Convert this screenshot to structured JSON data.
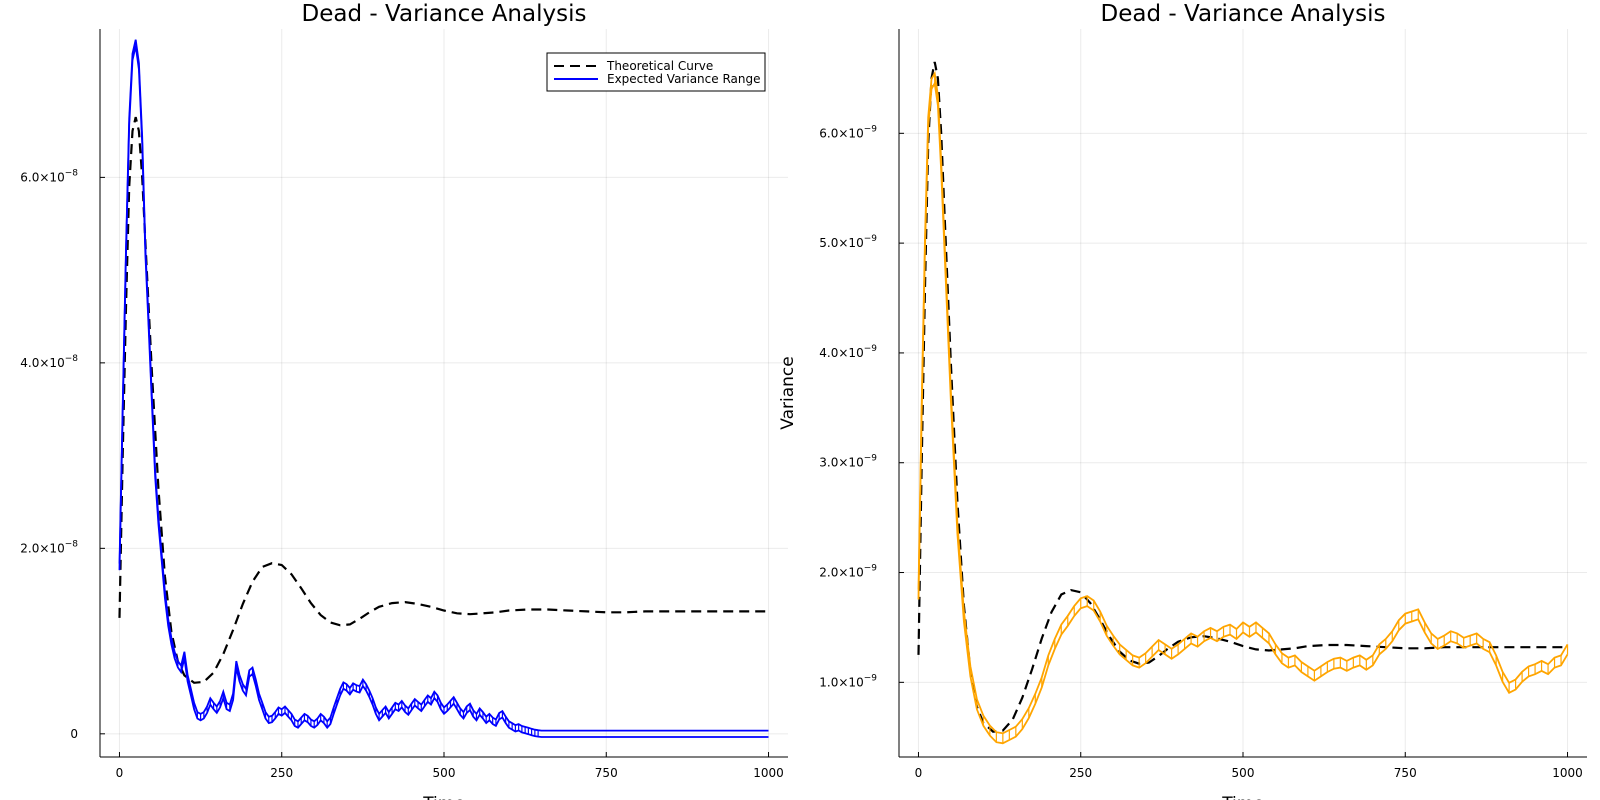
{
  "chart_data": [
    {
      "type": "line",
      "title": "Dead - Variance Analysis",
      "xlabel": "Time",
      "ylabel": "",
      "xlim": [
        -30,
        1030
      ],
      "ylim": [
        -2.5e-09,
        7.6e-08
      ],
      "grid": true,
      "legend_position": "top-right",
      "x_ticks": [
        0,
        250,
        500,
        750,
        1000
      ],
      "x_tick_labels": [
        "0",
        "250",
        "500",
        "750",
        "1000"
      ],
      "y_ticks": [
        0,
        2e-08,
        4e-08,
        6e-08
      ],
      "y_tick_labels": [
        {
          "mantissa": "0",
          "exp": ""
        },
        {
          "mantissa": "2.0×10",
          "exp": "−8"
        },
        {
          "mantissa": "4.0×10",
          "exp": "−8"
        },
        {
          "mantissa": "6.0×10",
          "exp": "−8"
        }
      ],
      "series": [
        {
          "name": "Theoretical Curve",
          "style": "dashed",
          "color": "#000000",
          "x": [
            0,
            5,
            10,
            15,
            20,
            25,
            30,
            35,
            40,
            50,
            60,
            70,
            80,
            90,
            100,
            115,
            130,
            145,
            160,
            175,
            190,
            205,
            220,
            235,
            250,
            265,
            280,
            295,
            310,
            325,
            340,
            355,
            370,
            385,
            400,
            420,
            440,
            460,
            480,
            500,
            520,
            540,
            560,
            580,
            600,
            630,
            660,
            690,
            720,
            750,
            780,
            810,
            840,
            870,
            900,
            930,
            960,
            1000
          ],
          "y": [
            1.25e-08,
            3e-08,
            4.6e-08,
            5.9e-08,
            6.5e-08,
            6.65e-08,
            6.5e-08,
            6e-08,
            5.3e-08,
            3.9e-08,
            2.65e-08,
            1.7e-08,
            1.1e-08,
            7.8e-09,
            6.3e-09,
            5.5e-09,
            5.6e-09,
            6.6e-09,
            8.6e-09,
            1.12e-08,
            1.4e-08,
            1.64e-08,
            1.8e-08,
            1.84e-08,
            1.82e-08,
            1.72e-08,
            1.57e-08,
            1.41e-08,
            1.28e-08,
            1.2e-08,
            1.17e-08,
            1.18e-08,
            1.24e-08,
            1.31e-08,
            1.37e-08,
            1.41e-08,
            1.42e-08,
            1.4e-08,
            1.37e-08,
            1.33e-08,
            1.3e-08,
            1.29e-08,
            1.3e-08,
            1.31e-08,
            1.33e-08,
            1.34e-08,
            1.34e-08,
            1.33e-08,
            1.32e-08,
            1.31e-08,
            1.31e-08,
            1.32e-08,
            1.32e-08,
            1.32e-08,
            1.32e-08,
            1.32e-08,
            1.32e-08,
            1.32e-08
          ]
        },
        {
          "name": "Expected Variance Range",
          "style": "band",
          "color": "#0000ff",
          "x": [
            0,
            5,
            10,
            15,
            20,
            25,
            30,
            35,
            40,
            45,
            50,
            55,
            60,
            65,
            70,
            75,
            80,
            85,
            90,
            95,
            100,
            105,
            110,
            115,
            120,
            125,
            130,
            135,
            140,
            145,
            150,
            155,
            160,
            165,
            170,
            175,
            180,
            185,
            190,
            195,
            200,
            205,
            210,
            215,
            220,
            225,
            230,
            235,
            240,
            245,
            250,
            255,
            260,
            265,
            270,
            275,
            280,
            285,
            290,
            295,
            300,
            305,
            310,
            315,
            320,
            325,
            330,
            335,
            340,
            345,
            350,
            355,
            360,
            365,
            370,
            375,
            380,
            385,
            390,
            395,
            400,
            405,
            410,
            415,
            420,
            425,
            430,
            435,
            440,
            445,
            450,
            455,
            460,
            465,
            470,
            475,
            480,
            485,
            490,
            495,
            500,
            505,
            510,
            515,
            520,
            525,
            530,
            535,
            540,
            545,
            550,
            555,
            560,
            565,
            570,
            575,
            580,
            585,
            590,
            595,
            600,
            605,
            610,
            615,
            620,
            625,
            630,
            635,
            640,
            645,
            650,
            700,
            750,
            800,
            850,
            900,
            950,
            1000
          ],
          "y": [
            1.8e-08,
            3.5e-08,
            5.2e-08,
            6.6e-08,
            7.3e-08,
            7.45e-08,
            7.2e-08,
            6.4e-08,
            5.2e-08,
            4.4e-08,
            3.6e-08,
            2.8e-08,
            2.3e-08,
            1.9e-08,
            1.5e-08,
            1.2e-08,
            1e-08,
            8.5e-09,
            7.5e-09,
            7e-09,
            8.5e-09,
            6e-09,
            4.5e-09,
            3e-09,
            2e-09,
            1.8e-09,
            2e-09,
            2.6e-09,
            3.5e-09,
            3e-09,
            2.6e-09,
            3.2e-09,
            4.2e-09,
            3e-09,
            2.8e-09,
            4e-09,
            7.5e-09,
            6e-09,
            5e-09,
            4.5e-09,
            6.5e-09,
            6.8e-09,
            5.5e-09,
            4e-09,
            3e-09,
            2e-09,
            1.5e-09,
            1.6e-09,
            2e-09,
            2.5e-09,
            2.3e-09,
            2.6e-09,
            2.2e-09,
            1.8e-09,
            1.2e-09,
            1e-09,
            1.4e-09,
            1.8e-09,
            1.6e-09,
            1.2e-09,
            1e-09,
            1.3e-09,
            1.8e-09,
            1.5e-09,
            1e-09,
            1.4e-09,
            2.5e-09,
            3.5e-09,
            4.5e-09,
            5.2e-09,
            5e-09,
            4.6e-09,
            5.1e-09,
            4.9e-09,
            4.8e-09,
            5.5e-09,
            5e-09,
            4.3e-09,
            3.5e-09,
            2.5e-09,
            1.8e-09,
            2.2e-09,
            2.6e-09,
            2e-09,
            2.5e-09,
            3e-09,
            2.8e-09,
            3.2e-09,
            2.7e-09,
            2.4e-09,
            2.9e-09,
            3.4e-09,
            3.1e-09,
            2.8e-09,
            3.3e-09,
            3.8e-09,
            3.5e-09,
            4.2e-09,
            3.8e-09,
            3e-09,
            2.5e-09,
            2.8e-09,
            3.2e-09,
            3.6e-09,
            3e-09,
            2.4e-09,
            2e-09,
            2.6e-09,
            2.9e-09,
            2.2e-09,
            1.8e-09,
            2.4e-09,
            2e-09,
            1.5e-09,
            1.8e-09,
            1.4e-09,
            1.2e-09,
            1.9e-09,
            2.1e-09,
            1.5e-09,
            1e-09,
            8e-10,
            6e-10,
            7e-10,
            5e-10,
            4e-10,
            3e-10,
            2e-10,
            1e-10,
            5e-11,
            0,
            0,
            0,
            0,
            0,
            0,
            0,
            0
          ]
        }
      ]
    },
    {
      "type": "line",
      "title": "Dead - Variance Analysis",
      "xlabel": "Time",
      "ylabel": "Variance",
      "xlim": [
        -30,
        1030
      ],
      "ylim": [
        3.2e-10,
        6.95e-09
      ],
      "grid": true,
      "legend_position": "none",
      "x_ticks": [
        0,
        250,
        500,
        750,
        1000
      ],
      "x_tick_labels": [
        "0",
        "250",
        "500",
        "750",
        "1000"
      ],
      "y_ticks": [
        1e-09,
        2e-09,
        3e-09,
        4e-09,
        5e-09,
        6e-09
      ],
      "y_tick_labels": [
        {
          "mantissa": "1.0×10",
          "exp": "−9"
        },
        {
          "mantissa": "2.0×10",
          "exp": "−9"
        },
        {
          "mantissa": "3.0×10",
          "exp": "−9"
        },
        {
          "mantissa": "4.0×10",
          "exp": "−9"
        },
        {
          "mantissa": "5.0×10",
          "exp": "−9"
        },
        {
          "mantissa": "6.0×10",
          "exp": "−9"
        }
      ],
      "series": [
        {
          "style": "dashed",
          "color": "#000000",
          "x": [
            0,
            5,
            10,
            15,
            20,
            25,
            30,
            35,
            40,
            50,
            60,
            70,
            80,
            90,
            100,
            115,
            130,
            145,
            160,
            175,
            190,
            205,
            220,
            235,
            250,
            265,
            280,
            295,
            310,
            325,
            340,
            355,
            370,
            385,
            400,
            420,
            440,
            460,
            480,
            500,
            520,
            540,
            560,
            580,
            600,
            630,
            660,
            690,
            720,
            750,
            780,
            810,
            840,
            870,
            900,
            930,
            960,
            1000
          ],
          "y": [
            1.25e-09,
            3e-09,
            4.6e-09,
            5.9e-09,
            6.5e-09,
            6.65e-09,
            6.5e-09,
            6e-09,
            5.3e-09,
            3.9e-09,
            2.65e-09,
            1.7e-09,
            1.1e-09,
            7.8e-10,
            6.3e-10,
            5.5e-10,
            5.6e-10,
            6.6e-10,
            8.6e-10,
            1.12e-09,
            1.4e-09,
            1.64e-09,
            1.8e-09,
            1.84e-09,
            1.82e-09,
            1.72e-09,
            1.57e-09,
            1.41e-09,
            1.28e-09,
            1.2e-09,
            1.17e-09,
            1.18e-09,
            1.24e-09,
            1.31e-09,
            1.37e-09,
            1.41e-09,
            1.42e-09,
            1.4e-09,
            1.37e-09,
            1.33e-09,
            1.3e-09,
            1.29e-09,
            1.3e-09,
            1.31e-09,
            1.33e-09,
            1.34e-09,
            1.34e-09,
            1.33e-09,
            1.32e-09,
            1.31e-09,
            1.31e-09,
            1.32e-09,
            1.32e-09,
            1.32e-09,
            1.32e-09,
            1.32e-09,
            1.32e-09,
            1.32e-09
          ]
        },
        {
          "style": "band",
          "color": "#ffa500",
          "x": [
            0,
            5,
            10,
            15,
            20,
            25,
            30,
            35,
            40,
            50,
            60,
            70,
            80,
            90,
            100,
            110,
            120,
            130,
            140,
            150,
            160,
            170,
            180,
            190,
            200,
            210,
            220,
            230,
            240,
            250,
            260,
            270,
            280,
            290,
            300,
            310,
            320,
            330,
            340,
            350,
            360,
            370,
            380,
            390,
            400,
            410,
            420,
            430,
            440,
            450,
            460,
            470,
            480,
            490,
            500,
            510,
            520,
            530,
            540,
            550,
            560,
            570,
            580,
            590,
            600,
            610,
            620,
            630,
            640,
            650,
            660,
            670,
            680,
            690,
            700,
            710,
            720,
            730,
            740,
            750,
            760,
            770,
            780,
            790,
            800,
            810,
            820,
            830,
            840,
            850,
            860,
            870,
            880,
            890,
            900,
            910,
            920,
            930,
            940,
            950,
            960,
            970,
            980,
            990,
            1000
          ],
          "y": [
            1.8e-09,
            3.5e-09,
            5e-09,
            6.1e-09,
            6.45e-09,
            6.5e-09,
            6.3e-09,
            5.7e-09,
            5e-09,
            3.6e-09,
            2.4e-09,
            1.6e-09,
            1.1e-09,
            8e-10,
            6.5e-10,
            5.6e-10,
            5e-10,
            4.9e-10,
            5.2e-10,
            5.5e-10,
            6.2e-10,
            7.2e-10,
            8.5e-10,
            1e-09,
            1.2e-09,
            1.35e-09,
            1.48e-09,
            1.56e-09,
            1.65e-09,
            1.72e-09,
            1.74e-09,
            1.7e-09,
            1.6e-09,
            1.47e-09,
            1.38e-09,
            1.3e-09,
            1.25e-09,
            1.2e-09,
            1.18e-09,
            1.22e-09,
            1.28e-09,
            1.34e-09,
            1.3e-09,
            1.26e-09,
            1.3e-09,
            1.35e-09,
            1.4e-09,
            1.37e-09,
            1.42e-09,
            1.45e-09,
            1.42e-09,
            1.46e-09,
            1.48e-09,
            1.44e-09,
            1.5e-09,
            1.46e-09,
            1.5e-09,
            1.45e-09,
            1.4e-09,
            1.3e-09,
            1.22e-09,
            1.18e-09,
            1.2e-09,
            1.14e-09,
            1.1e-09,
            1.06e-09,
            1.1e-09,
            1.14e-09,
            1.17e-09,
            1.18e-09,
            1.15e-09,
            1.18e-09,
            1.2e-09,
            1.16e-09,
            1.2e-09,
            1.3e-09,
            1.35e-09,
            1.42e-09,
            1.52e-09,
            1.58e-09,
            1.6e-09,
            1.62e-09,
            1.5e-09,
            1.4e-09,
            1.35e-09,
            1.38e-09,
            1.42e-09,
            1.4e-09,
            1.36e-09,
            1.38e-09,
            1.4e-09,
            1.35e-09,
            1.32e-09,
            1.2e-09,
            1.05e-09,
            9.5e-10,
            9.8e-10,
            1.05e-09,
            1.1e-09,
            1.12e-09,
            1.15e-09,
            1.12e-09,
            1.18e-09,
            1.2e-09,
            1.3e-09
          ]
        }
      ]
    }
  ]
}
